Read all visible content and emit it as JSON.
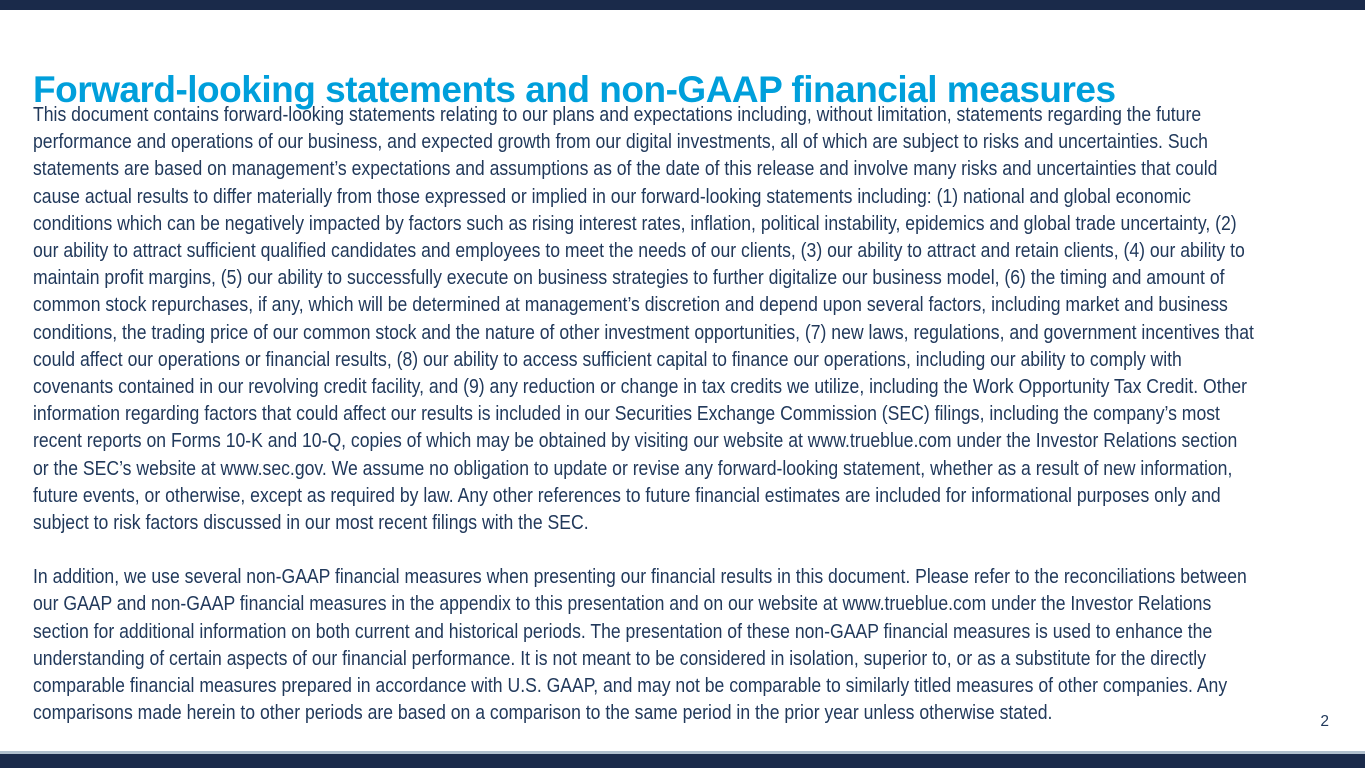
{
  "slide": {
    "title": "Forward-looking statements and non-GAAP financial measures",
    "page_number": "2",
    "colors": {
      "title": "#009fdb",
      "body_text": "#21395b",
      "bar_navy": "#1a2a4a",
      "accent_line": "#b0bfcd"
    },
    "paragraph1_lines": [
      "This document contains forward-looking statements relating to our plans and expectations including, without limitation, statements regarding the future",
      "performance and operations of our business, and expected growth from our digital investments, all of which are subject to risks and uncertainties. Such",
      "statements are based on management’s expectations and assumptions as of the date of this release and involve many risks and uncertainties that could",
      "cause actual results to differ materially from those expressed or implied in our forward-looking statements including: (1) national and global economic",
      "conditions which can be negatively impacted by factors such as rising interest rates, inflation, political instability, epidemics and global trade uncertainty, (2)",
      "our ability to attract sufficient qualified candidates and employees to meet the needs of our clients, (3) our ability to attract and retain clients, (4) our ability to",
      "maintain profit margins, (5) our ability to successfully execute on business strategies to further digitalize our business model, (6) the timing and amount of",
      "common stock repurchases, if any, which will be determined at management’s discretion and depend upon several factors, including market and business",
      "conditions, the trading price of our common stock and the nature of other investment opportunities, (7) new laws, regulations, and government incentives that",
      "could affect our operations or financial results, (8) our ability to access sufficient capital to finance our operations, including our ability to comply with",
      "covenants contained in our revolving credit facility, and (9) any reduction or change in tax credits we utilize, including the Work Opportunity Tax Credit. Other",
      "information regarding factors that could affect our results is included in our Securities Exchange Commission (SEC) filings, including the company’s most",
      "recent reports on Forms 10-K and 10-Q, copies of which may be obtained by visiting our website at www.trueblue.com under the Investor Relations section",
      "or the SEC’s website at www.sec.gov. We assume no obligation to update or revise any forward-looking statement, whether as a result of new information,",
      "future events, or otherwise, except as required by law. Any other references to future financial estimates are included for informational purposes only and",
      "subject to risk factors discussed in our most recent filings with the SEC."
    ],
    "paragraph2_lines": [
      "In addition, we use several non-GAAP financial measures when presenting our financial results in this document. Please refer to the reconciliations between",
      "our GAAP and non-GAAP financial measures in the appendix to this presentation and on our website at www.trueblue.com under the Investor Relations",
      "section for additional information on both current and historical periods. The presentation of these non-GAAP financial measures is used to enhance the",
      "understanding of certain aspects of our financial performance. It is not meant to be considered in isolation, superior to, or as a substitute for the directly",
      "comparable financial measures prepared in accordance with U.S. GAAP, and may not be comparable to similarly titled measures of other companies. Any",
      "comparisons made herein to other periods are based on a comparison to the same period in the prior year unless otherwise stated."
    ]
  }
}
